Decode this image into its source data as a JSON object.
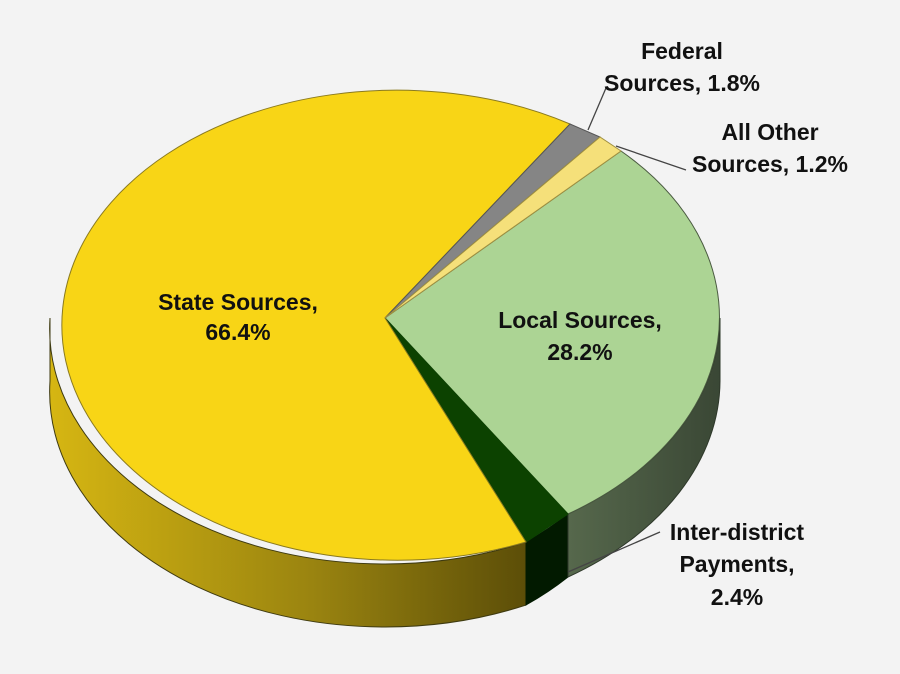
{
  "chart_data": {
    "type": "pie",
    "title": "",
    "slices": [
      {
        "name": "Local Sources",
        "value": 28.2,
        "label_name": "Local Sources,",
        "label_value": "28.2%",
        "color": "#acd494",
        "side_color": "#3f503a"
      },
      {
        "name": "Inter-district Payments",
        "value": 2.4,
        "label_name_1": "Inter-district",
        "label_name_2": "Payments,",
        "label_value": "2.4%",
        "color": "#0c4200",
        "side_color": "#021a00"
      },
      {
        "name": "State Sources",
        "value": 66.4,
        "label_name": "State Sources,",
        "label_value": "66.4%",
        "color": "#f8d516",
        "side_color": "#b49a0e"
      },
      {
        "name": "Federal Sources",
        "value": 1.8,
        "label_name_1": "Federal",
        "label_name_2": "Sources, 1.8%",
        "color": "#858585",
        "side_color": "#555555"
      },
      {
        "name": "All Other Sources",
        "value": 1.2,
        "label_name_1": "All Other",
        "label_name_2": "Sources, 1.2%",
        "color": "#f5e07a",
        "side_color": "#b7a650"
      }
    ]
  }
}
